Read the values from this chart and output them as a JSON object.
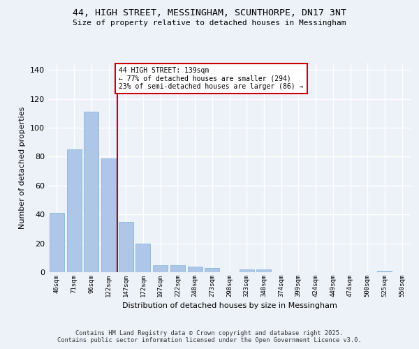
{
  "title_line1": "44, HIGH STREET, MESSINGHAM, SCUNTHORPE, DN17 3NT",
  "title_line2": "Size of property relative to detached houses in Messingham",
  "xlabel": "Distribution of detached houses by size in Messingham",
  "ylabel": "Number of detached properties",
  "categories": [
    "46sqm",
    "71sqm",
    "96sqm",
    "122sqm",
    "147sqm",
    "172sqm",
    "197sqm",
    "222sqm",
    "248sqm",
    "273sqm",
    "298sqm",
    "323sqm",
    "348sqm",
    "374sqm",
    "399sqm",
    "424sqm",
    "449sqm",
    "474sqm",
    "500sqm",
    "525sqm",
    "550sqm"
  ],
  "values": [
    41,
    85,
    111,
    79,
    35,
    20,
    5,
    5,
    4,
    3,
    0,
    2,
    2,
    0,
    0,
    0,
    0,
    0,
    0,
    1,
    0
  ],
  "bar_color": "#aec6e8",
  "bar_edgecolor": "#7aafd4",
  "reference_line_color": "#cc0000",
  "ylim": [
    0,
    145
  ],
  "yticks": [
    0,
    20,
    40,
    60,
    80,
    100,
    120,
    140
  ],
  "annotation_text": "44 HIGH STREET: 139sqm\n← 77% of detached houses are smaller (294)\n23% of semi-detached houses are larger (86) →",
  "annotation_box_color": "#cc0000",
  "footnote": "Contains HM Land Registry data © Crown copyright and database right 2025.\nContains public sector information licensed under the Open Government Licence v3.0.",
  "bg_color": "#edf2f8",
  "grid_color": "#ffffff"
}
